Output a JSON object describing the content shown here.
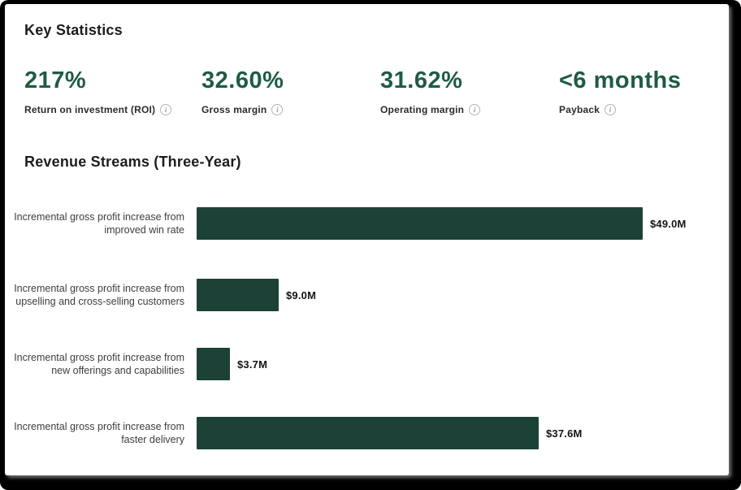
{
  "header": {
    "title": "Key Statistics"
  },
  "stats": {
    "items": [
      {
        "value": "217%",
        "label": "Return on investment (ROI)",
        "icon": "info-icon",
        "icon_glyph": "i"
      },
      {
        "value": "32.60%",
        "label": "Gross margin",
        "icon": "info-icon",
        "icon_glyph": "i"
      },
      {
        "value": "31.62%",
        "label": "Operating margin",
        "icon": "info-icon",
        "icon_glyph": "i"
      },
      {
        "value": "<6 months",
        "label": "Payback",
        "icon": "info-icon",
        "icon_glyph": "i"
      }
    ]
  },
  "chart": {
    "title": "Revenue Streams (Three-Year)"
  },
  "chart_data": {
    "type": "bar",
    "orientation": "horizontal",
    "title": "Revenue Streams (Three-Year)",
    "categories": [
      "Incremental gross profit increase from improved win rate",
      "Incremental gross profit increase from upselling and cross-selling customers",
      "Incremental gross profit increase from new offerings and capabilities",
      "Incremental gross profit increase from faster delivery"
    ],
    "values": [
      49.0,
      9.0,
      3.7,
      37.6
    ],
    "value_labels": [
      "$49.0M",
      "$9.0M",
      "$3.7M",
      "$37.6M"
    ],
    "unit": "USD millions",
    "xlim": [
      0,
      49
    ],
    "grid": false,
    "legend": false,
    "bar_color": "#1c4136"
  },
  "colors": {
    "accent_green": "#1e5c41",
    "bar_green": "#1c4136",
    "frame_black": "#000000",
    "background": "#ffffff"
  }
}
